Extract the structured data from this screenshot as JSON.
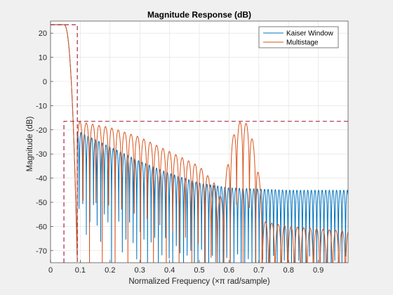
{
  "chart_data": {
    "type": "line",
    "title": "Magnitude Response (dB)",
    "xlabel": "Normalized Frequency  (×π rad/sample)",
    "ylabel": "Magnitude (dB)",
    "xlim": [
      0,
      1
    ],
    "ylim": [
      -75,
      25
    ],
    "xticks": [
      0,
      0.1,
      0.2,
      0.3,
      0.4,
      0.5,
      0.6,
      0.7,
      0.8,
      0.9
    ],
    "xtick_labels": [
      "0",
      "0.1",
      "0.2",
      "0.3",
      "0.4",
      "0.5",
      "0.6",
      "0.7",
      "0.8",
      "0.9"
    ],
    "yticks": [
      20,
      10,
      0,
      -10,
      -20,
      -30,
      -40,
      -50,
      -60,
      -70
    ],
    "ytick_labels": [
      "20",
      "10",
      "0",
      "-10",
      "-20",
      "-30",
      "-40",
      "-50",
      "-60",
      "-70"
    ],
    "grid": true,
    "legend_position": "top-right",
    "series": [
      {
        "name": "Kaiser Window",
        "color": "#0072bd",
        "passband_level": 23.5,
        "passband_edge": 0.045,
        "stopband_edge": 0.09,
        "sidelobe_peaks": [
          [
            0.1,
            -21
          ],
          [
            0.2,
            -27
          ],
          [
            0.3,
            -33
          ],
          [
            0.4,
            -38
          ],
          [
            0.5,
            -42
          ],
          [
            0.6,
            -44
          ],
          [
            0.7,
            -44.5
          ],
          [
            0.8,
            -45
          ],
          [
            0.9,
            -45
          ],
          [
            1.0,
            -45
          ]
        ],
        "null_floor": -75
      },
      {
        "name": "Multistage",
        "color": "#d95319",
        "passband_level": 23.5,
        "passband_edge": 0.045,
        "stopband_edge": 0.09,
        "sidelobe_peaks": [
          [
            0.09,
            -16.5
          ],
          [
            0.2,
            -19
          ],
          [
            0.3,
            -23
          ],
          [
            0.4,
            -29
          ],
          [
            0.5,
            -35
          ],
          [
            0.55,
            -42
          ],
          [
            0.6,
            -55
          ],
          [
            0.8,
            -60
          ],
          [
            1.0,
            -62
          ]
        ],
        "image_lobe": {
          "center": 0.645,
          "peak": -16.5,
          "halfwidth": 0.065
        },
        "null_floor": -75
      }
    ],
    "mask": {
      "color": "#a2142f",
      "passband_level": 23.5,
      "passband_edge": 0.045,
      "stopband_edge": 0.09,
      "stopband_level": -16.5
    }
  }
}
